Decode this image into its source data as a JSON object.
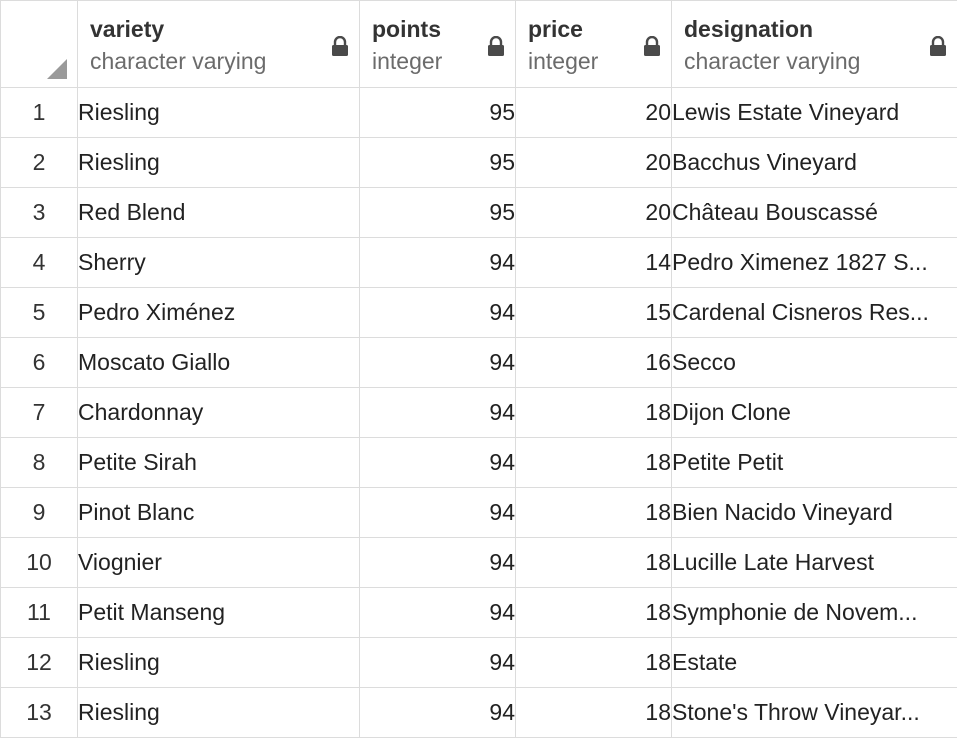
{
  "columns": [
    {
      "name": "variety",
      "type": "character varying"
    },
    {
      "name": "points",
      "type": "integer"
    },
    {
      "name": "price",
      "type": "integer"
    },
    {
      "name": "designation",
      "type": "character varying"
    }
  ],
  "rows": [
    {
      "n": "1",
      "variety": "Riesling",
      "points": "95",
      "price": "20",
      "designation": "Lewis Estate Vineyard"
    },
    {
      "n": "2",
      "variety": "Riesling",
      "points": "95",
      "price": "20",
      "designation": "Bacchus Vineyard"
    },
    {
      "n": "3",
      "variety": "Red Blend",
      "points": "95",
      "price": "20",
      "designation": "Château Bouscassé"
    },
    {
      "n": "4",
      "variety": "Sherry",
      "points": "94",
      "price": "14",
      "designation": "Pedro Ximenez 1827 S..."
    },
    {
      "n": "5",
      "variety": "Pedro Ximénez",
      "points": "94",
      "price": "15",
      "designation": "Cardenal Cisneros Res..."
    },
    {
      "n": "6",
      "variety": "Moscato Giallo",
      "points": "94",
      "price": "16",
      "designation": "Secco"
    },
    {
      "n": "7",
      "variety": "Chardonnay",
      "points": "94",
      "price": "18",
      "designation": "Dijon Clone"
    },
    {
      "n": "8",
      "variety": "Petite Sirah",
      "points": "94",
      "price": "18",
      "designation": "Petite Petit"
    },
    {
      "n": "9",
      "variety": "Pinot Blanc",
      "points": "94",
      "price": "18",
      "designation": "Bien Nacido Vineyard"
    },
    {
      "n": "10",
      "variety": "Viognier",
      "points": "94",
      "price": "18",
      "designation": "Lucille Late Harvest"
    },
    {
      "n": "11",
      "variety": "Petit Manseng",
      "points": "94",
      "price": "18",
      "designation": "Symphonie de Novem..."
    },
    {
      "n": "12",
      "variety": "Riesling",
      "points": "94",
      "price": "18",
      "designation": "Estate"
    },
    {
      "n": "13",
      "variety": "Riesling",
      "points": "94",
      "price": "18",
      "designation": "Stone's Throw Vineyar..."
    }
  ],
  "icons": {
    "lock": "lock-icon",
    "corner": "select-all-corner-icon"
  },
  "colors": {
    "accent": "#3b6ea5",
    "grid_line": "#dcdcdc",
    "type_text": "#6b6b6b"
  }
}
